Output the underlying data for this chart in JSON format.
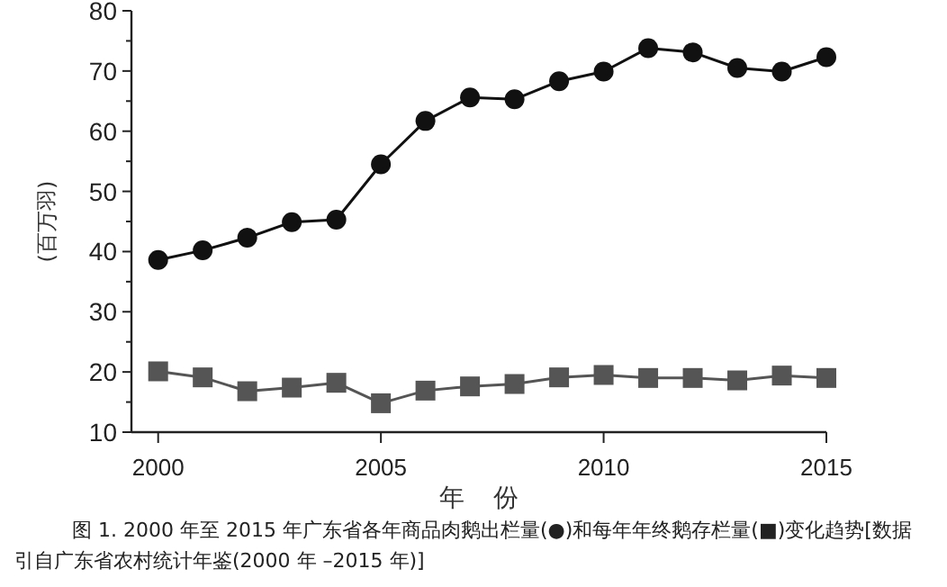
{
  "chart_data": {
    "type": "line",
    "xlabel": "年 份",
    "ylabel": "(百万羽)",
    "x": [
      2000,
      2001,
      2002,
      2003,
      2004,
      2005,
      2006,
      2007,
      2008,
      2009,
      2010,
      2011,
      2012,
      2013,
      2014,
      2015
    ],
    "series": [
      {
        "color": "#111111",
        "marker": "circle",
        "values": [
          38.6,
          40.2,
          42.3,
          44.9,
          45.3,
          54.5,
          61.7,
          65.6,
          65.3,
          68.3,
          69.9,
          73.8,
          73.1,
          70.5,
          69.9,
          72.3
        ]
      },
      {
        "color": "#555555",
        "marker": "square",
        "values": [
          20.1,
          19.1,
          16.8,
          17.4,
          18.2,
          14.8,
          16.9,
          17.6,
          18.0,
          19.1,
          19.5,
          19.0,
          19.0,
          18.6,
          19.4,
          19.0
        ]
      }
    ],
    "xlim": [
      1999.4,
      2015
    ],
    "xticks": [
      2000,
      2005,
      2010,
      2015
    ],
    "ylim": [
      10,
      80
    ],
    "yticks": [
      10,
      {
        "value": 15,
        "label": null
      },
      20,
      {
        "value": 25,
        "label": null
      },
      30,
      {
        "value": 35,
        "label": null
      },
      40,
      {
        "value": 45,
        "label": null
      },
      50,
      {
        "value": 55,
        "label": null
      },
      60,
      {
        "value": 65,
        "label": null
      },
      70,
      {
        "value": 75,
        "label": null
      },
      80
    ],
    "grid": false,
    "annotations": [
      "图 1. 2000 年至 2015 年广东省各年商品肉鹅出栏量(●)和每年年终鹅存栏量(■)变化趋势[数据引自广东省农村统计年鉴(2000 年 –2015 年)]"
    ]
  }
}
